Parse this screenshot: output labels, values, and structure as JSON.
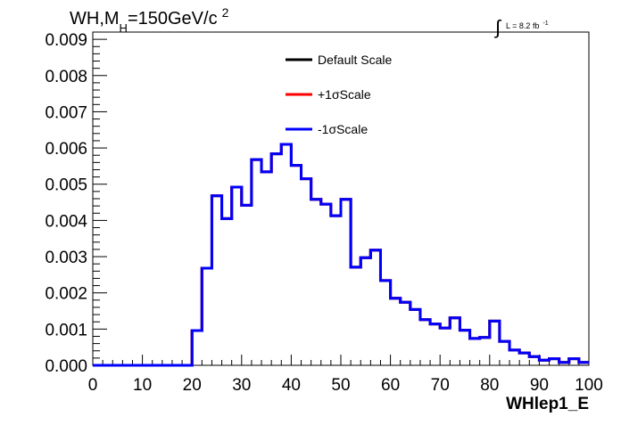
{
  "header": {
    "title_main": "WH,M",
    "title_sub": "H",
    "title_value": "=150GeV/c",
    "title_sup": "2",
    "lumi_integral": "∫",
    "lumi_text": "L = 8.2 fb",
    "lumi_sup": "-1"
  },
  "colors": {
    "default_scale": "#000000",
    "plus_scale": "#ff0000",
    "minus_scale": "#0000ff"
  },
  "chart_data": {
    "type": "line",
    "histogram_style": "step",
    "title": "",
    "xlabel": "WHlep1_E",
    "ylabel": "",
    "xlim": [
      0,
      100
    ],
    "ylim": [
      0,
      0.0092
    ],
    "grid": false,
    "legend_position": "top-center",
    "x_ticks": [
      "0",
      "10",
      "20",
      "30",
      "40",
      "50",
      "60",
      "70",
      "80",
      "90",
      "100"
    ],
    "y_ticks": [
      "0.000",
      "0.001",
      "0.002",
      "0.003",
      "0.004",
      "0.005",
      "0.006",
      "0.007",
      "0.008",
      "0.009"
    ],
    "bin_edges": [
      0,
      2,
      4,
      6,
      8,
      10,
      12,
      14,
      16,
      18,
      20,
      22,
      24,
      26,
      28,
      30,
      32,
      34,
      36,
      38,
      40,
      42,
      44,
      46,
      48,
      50,
      52,
      54,
      56,
      58,
      60,
      62,
      64,
      66,
      68,
      70,
      72,
      74,
      76,
      78,
      80,
      82,
      84,
      86,
      88,
      90,
      92,
      94,
      96,
      98,
      100
    ],
    "series": [
      {
        "name": "Default Scale",
        "values": [
          0,
          0,
          0,
          0,
          0,
          0,
          0,
          0,
          0,
          0,
          0.00096,
          0.00268,
          0.00468,
          0.00405,
          0.00492,
          0.00442,
          0.00568,
          0.00534,
          0.00584,
          0.0061,
          0.00552,
          0.00515,
          0.00458,
          0.00445,
          0.00413,
          0.00458,
          0.00271,
          0.00297,
          0.00318,
          0.00234,
          0.00185,
          0.00174,
          0.00154,
          0.00126,
          0.00114,
          0.00103,
          0.00131,
          0.00097,
          0.00074,
          0.00077,
          0.00122,
          0.00066,
          0.00042,
          0.00034,
          0.00024,
          0.00014,
          0.00018,
          8e-05,
          0.00018,
          8e-05
        ]
      },
      {
        "name": "+1σScale",
        "values": [
          0,
          0,
          0,
          0,
          0,
          0,
          0,
          0,
          0,
          0,
          0.00096,
          0.00268,
          0.00468,
          0.00405,
          0.00492,
          0.00442,
          0.00568,
          0.00534,
          0.00584,
          0.0061,
          0.00552,
          0.00515,
          0.00458,
          0.00445,
          0.00413,
          0.00458,
          0.00271,
          0.00297,
          0.00318,
          0.00234,
          0.00185,
          0.00174,
          0.00154,
          0.00126,
          0.00114,
          0.00103,
          0.00131,
          0.00097,
          0.00074,
          0.00077,
          0.00122,
          0.00066,
          0.00042,
          0.00034,
          0.00024,
          0.00014,
          0.00018,
          8e-05,
          0.00018,
          8e-05
        ]
      },
      {
        "name": "-1σScale",
        "values": [
          0,
          0,
          0,
          0,
          0,
          0,
          0,
          0,
          0,
          0,
          0.00096,
          0.00268,
          0.00468,
          0.00405,
          0.00492,
          0.00442,
          0.00568,
          0.00534,
          0.00584,
          0.0061,
          0.00552,
          0.00515,
          0.00458,
          0.00445,
          0.00413,
          0.00458,
          0.00271,
          0.00297,
          0.00318,
          0.00234,
          0.00185,
          0.00174,
          0.00154,
          0.00126,
          0.00114,
          0.00103,
          0.00131,
          0.00097,
          0.00074,
          0.00077,
          0.00122,
          0.00066,
          0.00042,
          0.00034,
          0.00024,
          0.00014,
          0.00018,
          8e-05,
          0.00018,
          8e-05
        ]
      }
    ]
  }
}
